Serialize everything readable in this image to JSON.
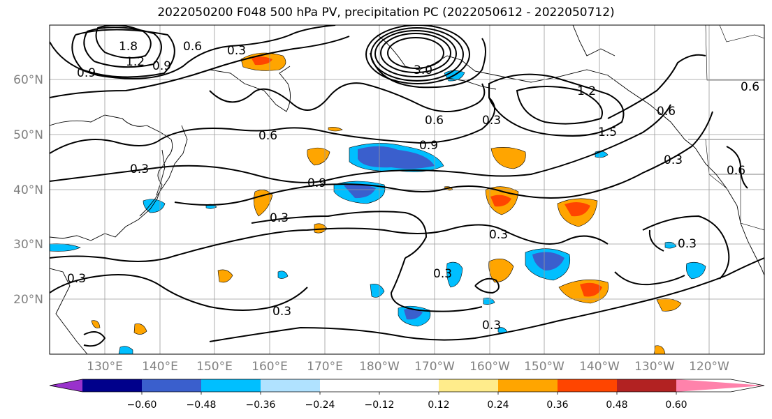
{
  "title": "2022050200 F048 500 hPa PV, precipitation PC (2022050612 - 2022050712)",
  "lat_labels": [
    "60°N",
    "50°N",
    "40°N",
    "30°N",
    "20°N"
  ],
  "lon_labels": [
    "130°E",
    "140°E",
    "150°E",
    "160°E",
    "170°E",
    "180°W",
    "170°W",
    "160°W",
    "150°W",
    "140°W",
    "130°W",
    "120°W"
  ],
  "contour_labels": [
    "1.8",
    "1.2",
    "0.9",
    "0.6",
    "0.3",
    "0.9",
    "3.0",
    "1.2",
    "1.5",
    "0.6",
    "0.6",
    "0.9",
    "0.6",
    "0.9",
    "0.3",
    "0.3",
    "0.6",
    "0.3",
    "0.3",
    "0.3",
    "0.3",
    "0.3",
    "0.3",
    "0.3",
    "0.6",
    "0.3"
  ],
  "colorbar": {
    "colors": [
      "#9932cc",
      "#00008b",
      "#3a5fcd",
      "#00bfff",
      "#b0e2ff",
      "#ffffff",
      "#ffffff",
      "#ffec8b",
      "#ffa500",
      "#ff4500",
      "#b22222",
      "#ff82ab"
    ],
    "tick_labels": [
      "−0.60",
      "−0.48",
      "−0.36",
      "−0.24",
      "−0.12",
      "0.12",
      "0.24",
      "0.36",
      "0.48",
      "0.60"
    ]
  }
}
